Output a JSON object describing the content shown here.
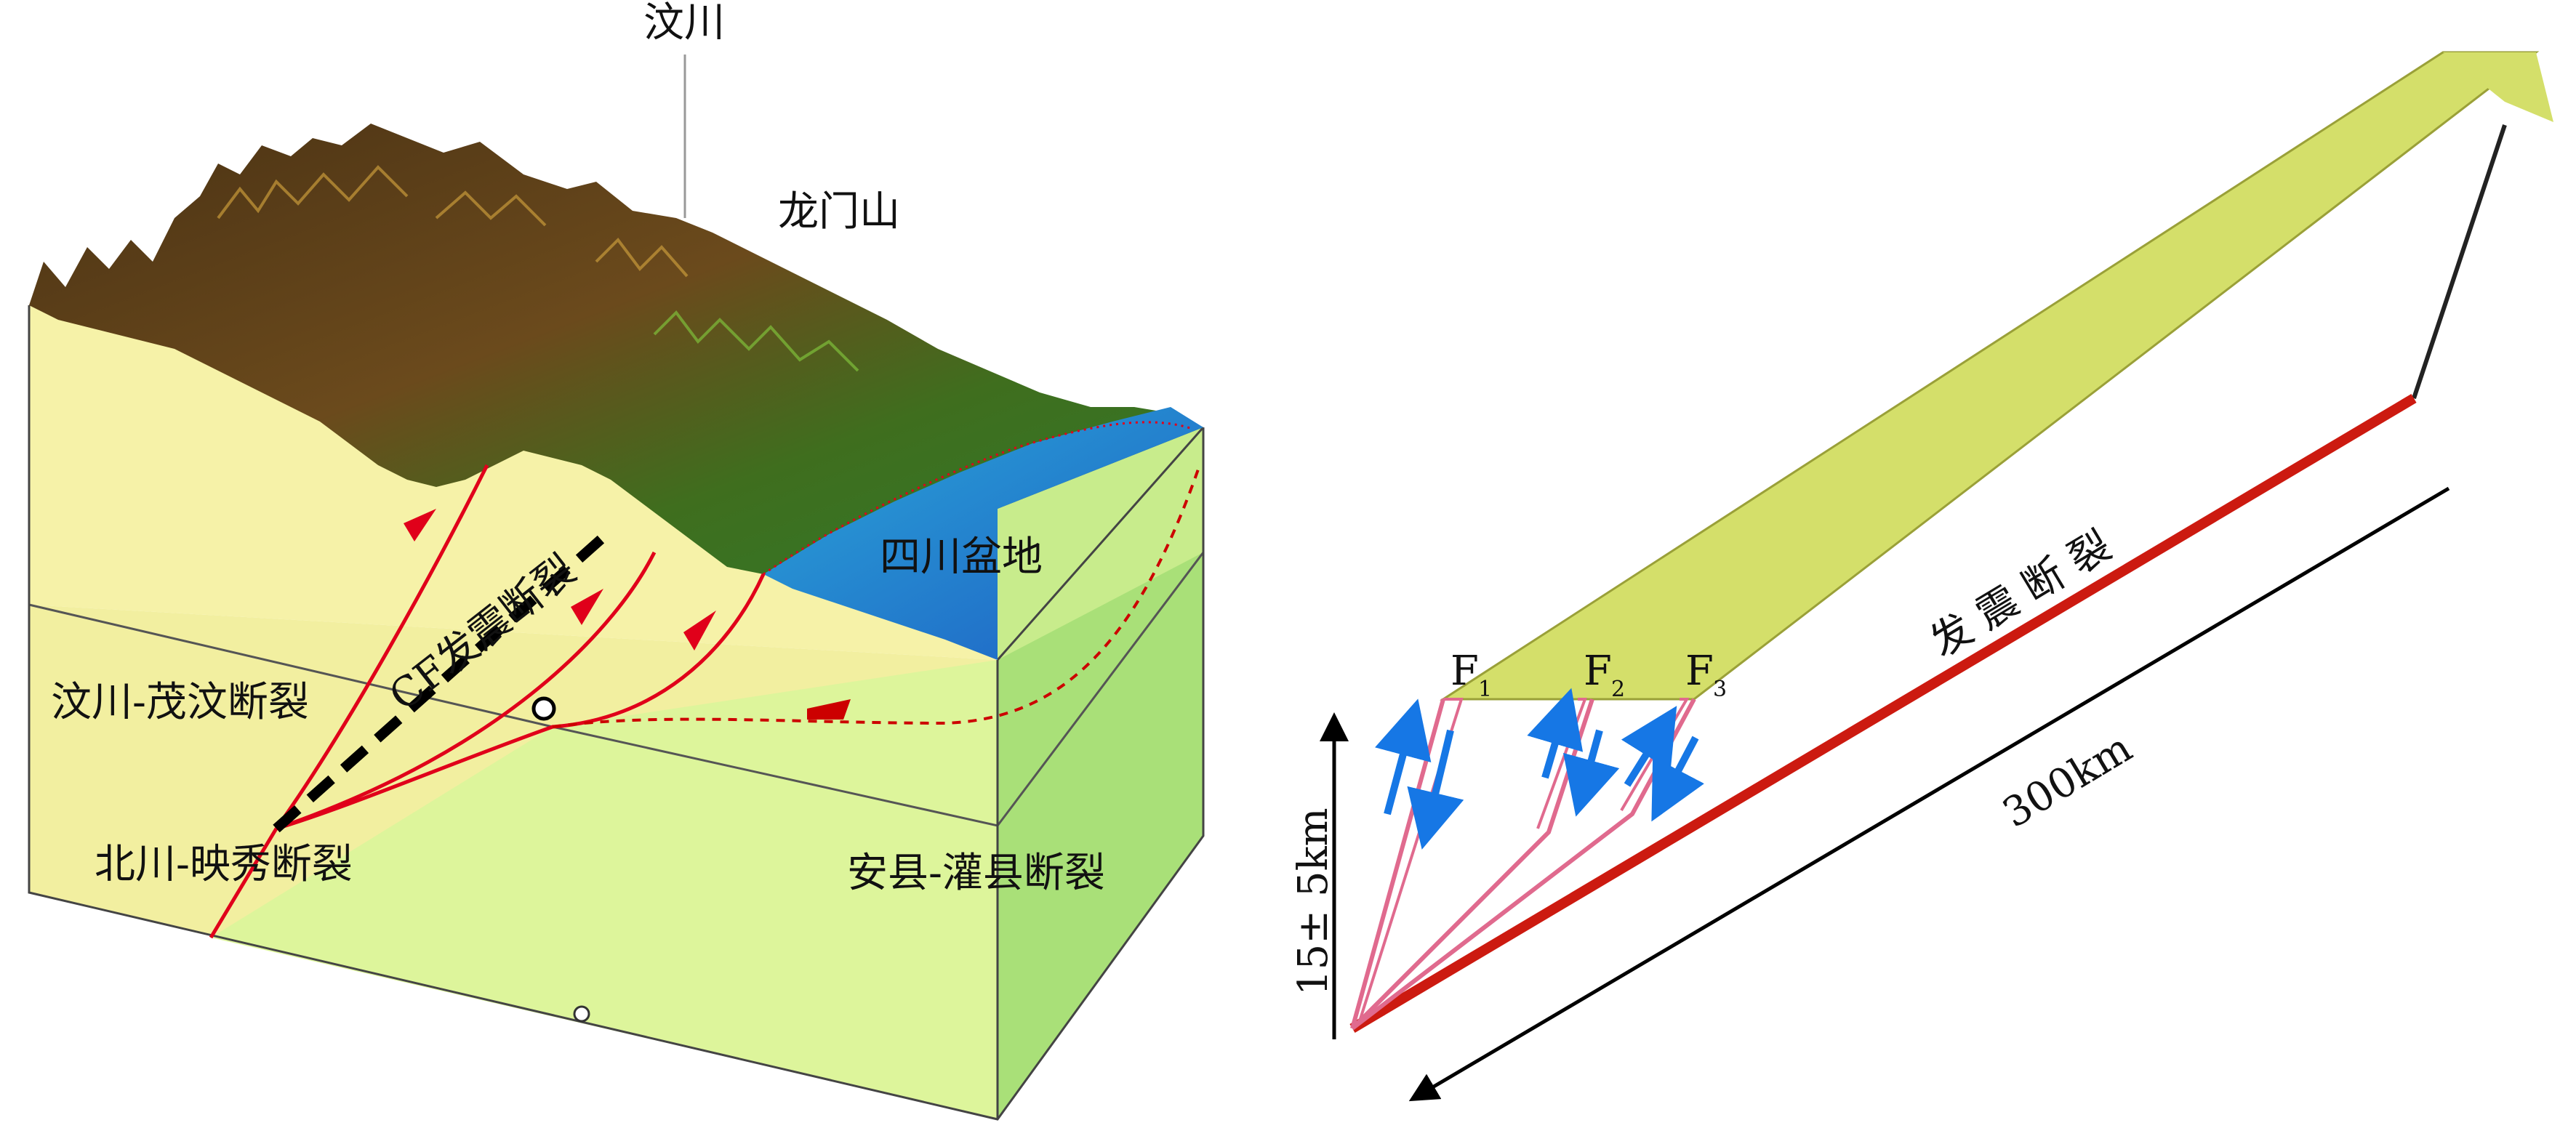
{
  "left_panel": {
    "labels": {
      "wenchuan": "汶川",
      "longmenshan": "龙门山",
      "sichuan_basin": "四川盆地",
      "seismogenic_fault_cf": "CF发震断裂",
      "wenchuan_maowen_fault": "汶川-茂汶断裂",
      "beichuan_yingxiu_fault": "北川-映秀断裂",
      "anxian_guanxian_fault": "安县-灌县断裂"
    },
    "colors": {
      "crust_upper": "#f6f2a8",
      "crust_lower": "#dcf59a",
      "crust_side": "#a9e078",
      "basin_water": "#2f7fd6",
      "fault_line": "#e0001a",
      "terrain_dark": "#3b2a12",
      "terrain_green": "#2f6b1c"
    }
  },
  "right_panel": {
    "fault_labels": [
      {
        "letter": "F",
        "index": "1"
      },
      {
        "letter": "F",
        "index": "2"
      },
      {
        "letter": "F",
        "index": "3"
      }
    ],
    "seismogenic_fault_label": "发 震 断 裂",
    "length_label": "300km",
    "depth_label": "15± 5km",
    "colors": {
      "top_plane": "#d4df6a",
      "fault_plane_edge": "#8a8a2a",
      "main_fault": "#cc1a10",
      "branch_fault": "#e06a8e",
      "motion_arrow": "#1677e5"
    }
  }
}
